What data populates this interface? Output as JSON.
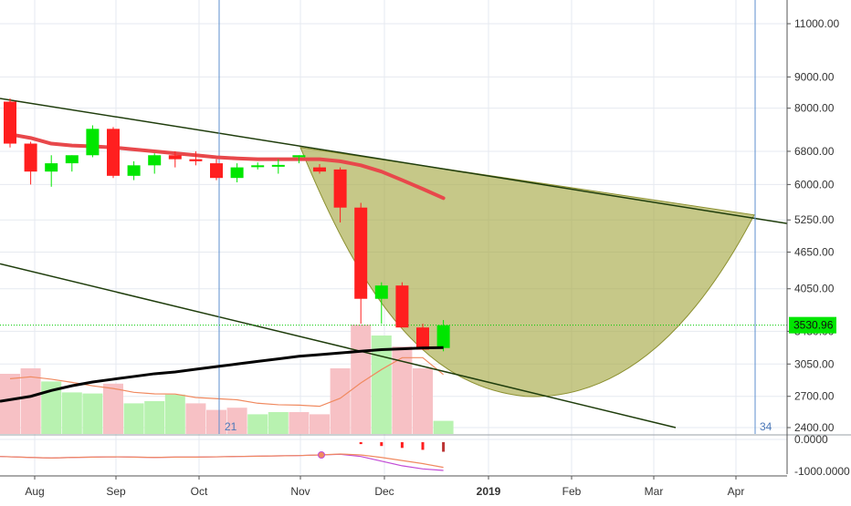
{
  "chart_data": {
    "type": "candlestick",
    "time_axis_labels": [
      "Aug",
      "Sep",
      "Oct",
      "Nov",
      "Dec",
      "2019",
      "Feb",
      "Mar",
      "Apr"
    ],
    "price_scale": "log",
    "price_ticks": [
      "11000.00",
      "9000.00",
      "8000.00",
      "6800.00",
      "6000.00",
      "5250.00",
      "4650.00",
      "4050.00",
      "3450.00",
      "3050.00",
      "2700.00",
      "2400.00"
    ],
    "price_tick_values": [
      11000,
      9000,
      8000,
      6800,
      6000,
      5250,
      4650,
      4050,
      3450,
      3050,
      2700,
      2400
    ],
    "ylim": [
      2400,
      13000
    ],
    "current_price": "3530.96",
    "current_price_value": 3530.96,
    "candles": [
      {
        "x": 0,
        "open": 8200,
        "high": 8300,
        "low": 6900,
        "close": 7000
      },
      {
        "x": 1,
        "open": 7000,
        "high": 7050,
        "low": 6000,
        "close": 6300
      },
      {
        "x": 2,
        "open": 6300,
        "high": 6700,
        "low": 5950,
        "close": 6500
      },
      {
        "x": 3,
        "open": 6500,
        "high": 6700,
        "low": 6300,
        "close": 6700
      },
      {
        "x": 4,
        "open": 6700,
        "high": 7500,
        "low": 6650,
        "close": 7400
      },
      {
        "x": 5,
        "open": 7400,
        "high": 7450,
        "low": 6150,
        "close": 6200
      },
      {
        "x": 6,
        "open": 6200,
        "high": 6550,
        "low": 6100,
        "close": 6450
      },
      {
        "x": 7,
        "open": 6450,
        "high": 6750,
        "low": 6250,
        "close": 6700
      },
      {
        "x": 8,
        "open": 6700,
        "high": 6800,
        "low": 6400,
        "close": 6600
      },
      {
        "x": 9,
        "open": 6600,
        "high": 6800,
        "low": 6450,
        "close": 6550
      },
      {
        "x": 10,
        "open": 6500,
        "high": 6600,
        "low": 6100,
        "close": 6150
      },
      {
        "x": 11,
        "open": 6150,
        "high": 6500,
        "low": 6050,
        "close": 6400
      },
      {
        "x": 12,
        "open": 6420,
        "high": 6520,
        "low": 6350,
        "close": 6450
      },
      {
        "x": 13,
        "open": 6440,
        "high": 6600,
        "low": 6250,
        "close": 6460
      },
      {
        "x": 14,
        "open": 6650,
        "high": 6700,
        "low": 6500,
        "close": 6700
      },
      {
        "x": 15,
        "open": 6400,
        "high": 6480,
        "low": 6250,
        "close": 6300
      },
      {
        "x": 16,
        "open": 6350,
        "high": 6400,
        "low": 5200,
        "close": 5500
      },
      {
        "x": 17,
        "open": 5500,
        "high": 5600,
        "low": 3550,
        "close": 3900
      },
      {
        "x": 18,
        "open": 3900,
        "high": 4150,
        "low": 3550,
        "close": 4100
      },
      {
        "x": 19,
        "open": 4100,
        "high": 4150,
        "low": 3600,
        "close": 3500
      },
      {
        "x": 20,
        "open": 3500,
        "high": 3550,
        "low": 3220,
        "close": 3220
      },
      {
        "x": 21,
        "open": 3240,
        "high": 3600,
        "low": 3200,
        "close": 3530.96
      }
    ],
    "moving_average_red": [
      7250,
      7150,
      7000,
      6950,
      6930,
      6900,
      6850,
      6800,
      6750,
      6700,
      6650,
      6620,
      6600,
      6600,
      6600,
      6600,
      6550,
      6450,
      6300,
      6100,
      5900,
      5700
    ],
    "moving_average_black": [
      2650,
      2700,
      2760,
      2810,
      2850,
      2880,
      2910,
      2940,
      2960,
      2990,
      3020,
      3050,
      3080,
      3110,
      3140,
      3160,
      3180,
      3200,
      3220,
      3230,
      3240,
      3245
    ],
    "volume": {
      "values": [
        0.55,
        0.6,
        0.48,
        0.38,
        0.37,
        0.46,
        0.28,
        0.3,
        0.36,
        0.28,
        0.22,
        0.24,
        0.18,
        0.2,
        0.2,
        0.18,
        0.6,
        1.0,
        0.9,
        0.8,
        0.6,
        0.12
      ],
      "up": [
        false,
        false,
        true,
        true,
        true,
        false,
        true,
        true,
        true,
        false,
        false,
        false,
        true,
        true,
        false,
        false,
        false,
        false,
        true,
        false,
        false,
        true
      ]
    },
    "indicator_ticks": [
      "0.0000",
      "-1000.0000"
    ],
    "indicator_histogram": [
      0,
      0,
      0,
      0,
      0,
      0,
      0,
      0,
      0,
      0,
      0,
      0,
      0,
      0,
      0,
      0,
      0,
      -0.15,
      -0.3,
      -0.45,
      -0.6,
      -0.75
    ],
    "indicator_line_a": [
      -0.55,
      -0.58,
      -0.6,
      -0.58,
      -0.57,
      -0.56,
      -0.57,
      -0.58,
      -0.57,
      -0.57,
      -0.56,
      -0.55,
      -0.54,
      -0.53,
      -0.52,
      -0.5,
      -0.48,
      -0.55,
      -0.7,
      -0.85,
      -0.95,
      -1.0
    ],
    "indicator_line_b": [
      -0.55,
      -0.58,
      -0.6,
      -0.58,
      -0.57,
      -0.56,
      -0.57,
      -0.58,
      -0.57,
      -0.57,
      -0.56,
      -0.55,
      -0.54,
      -0.53,
      -0.52,
      -0.5,
      -0.47,
      -0.5,
      -0.58,
      -0.68,
      -0.78,
      -0.9
    ],
    "vertical_markers": [
      "21",
      "34"
    ],
    "colors": {
      "up": "#00e600",
      "down": "#ff1f1f",
      "ma_red": "#e8484b",
      "ma_black": "#000000",
      "channel": "#1f3d0c",
      "cup_fill": "#a3a63f",
      "marker_line": "#5c8fcf",
      "marker_text": "#4b78b8",
      "price_badge": "#00e600",
      "price_line": "#00cc00",
      "vol_up": "#b8f2b0",
      "vol_down": "#f7c1c5",
      "vol_ma": "#f08a60",
      "grid": "#e6eaf0"
    }
  }
}
